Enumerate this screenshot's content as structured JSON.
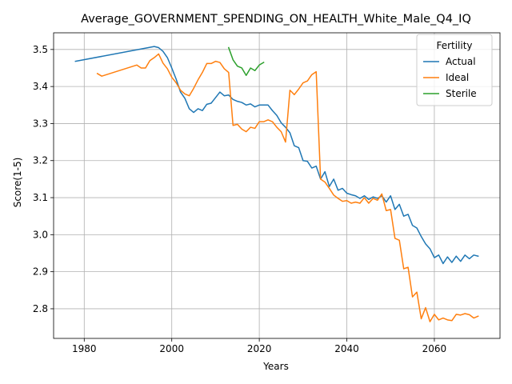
{
  "chart_data": {
    "type": "line",
    "title": "Average_GOVERNMENT_SPENDING_ON_HEALTH_White_Male_Q4_IQ",
    "xlabel": "Years",
    "ylabel": "Score(1-5)",
    "xlim": [
      1973,
      2075
    ],
    "ylim": [
      2.72,
      3.545
    ],
    "xticks": [
      1980,
      2000,
      2020,
      2040,
      2060
    ],
    "yticks": [
      2.8,
      2.9,
      3.0,
      3.1,
      3.2,
      3.3,
      3.4,
      3.5
    ],
    "grid": true,
    "legend": {
      "title": "Fertility",
      "position": "top-right"
    },
    "series": [
      {
        "name": "Actual",
        "color": "#1f77b4",
        "x": [
          1978,
          1996,
          1997,
          1998,
          1999,
          2000,
          2001,
          2002,
          2003,
          2004,
          2005,
          2006,
          2007,
          2008,
          2009,
          2010,
          2011,
          2012,
          2013,
          2014,
          2015,
          2016,
          2017,
          2018,
          2019,
          2020,
          2021,
          2022,
          2023,
          2024,
          2025,
          2026,
          2027,
          2028,
          2029,
          2030,
          2031,
          2032,
          2033,
          2034,
          2035,
          2036,
          2037,
          2038,
          2039,
          2040,
          2041,
          2042,
          2043,
          2044,
          2045,
          2046,
          2047,
          2048,
          2049,
          2050,
          2051,
          2052,
          2053,
          2054,
          2055,
          2056,
          2057,
          2058,
          2059,
          2060,
          2061,
          2062,
          2063,
          2064,
          2065,
          2066,
          2067,
          2068,
          2069,
          2070
        ],
        "y": [
          3.468,
          3.508,
          3.505,
          3.495,
          3.478,
          3.45,
          3.42,
          3.385,
          3.368,
          3.34,
          3.33,
          3.34,
          3.335,
          3.352,
          3.355,
          3.37,
          3.385,
          3.375,
          3.377,
          3.365,
          3.36,
          3.357,
          3.35,
          3.353,
          3.345,
          3.35,
          3.35,
          3.35,
          3.335,
          3.322,
          3.302,
          3.29,
          3.275,
          3.24,
          3.235,
          3.2,
          3.198,
          3.18,
          3.185,
          3.15,
          3.17,
          3.13,
          3.15,
          3.12,
          3.125,
          3.112,
          3.108,
          3.105,
          3.098,
          3.105,
          3.095,
          3.102,
          3.098,
          3.105,
          3.088,
          3.105,
          3.068,
          3.082,
          3.05,
          3.055,
          3.025,
          3.018,
          2.995,
          2.975,
          2.962,
          2.938,
          2.945,
          2.922,
          2.94,
          2.925,
          2.942,
          2.928,
          2.945,
          2.935,
          2.945,
          2.942
        ]
      },
      {
        "name": "Ideal",
        "color": "#ff7f0e",
        "x": [
          1983,
          1984,
          1992,
          1993,
          1994,
          1995,
          1996,
          1997,
          1998,
          1999,
          2000,
          2001,
          2002,
          2003,
          2004,
          2005,
          2006,
          2007,
          2008,
          2009,
          2010,
          2011,
          2012,
          2013,
          2014,
          2015,
          2016,
          2017,
          2018,
          2019,
          2020,
          2021,
          2022,
          2023,
          2024,
          2025,
          2026,
          2027,
          2028,
          2029,
          2030,
          2031,
          2032,
          2033,
          2034,
          2035,
          2036,
          2037,
          2038,
          2039,
          2040,
          2041,
          2042,
          2043,
          2044,
          2045,
          2046,
          2047,
          2048,
          2049,
          2050,
          2051,
          2052,
          2053,
          2054,
          2055,
          2056,
          2057,
          2058,
          2059,
          2060,
          2061,
          2062,
          2063,
          2064,
          2065,
          2066,
          2067,
          2068,
          2069,
          2070
        ],
        "y": [
          3.435,
          3.428,
          3.458,
          3.45,
          3.45,
          3.47,
          3.478,
          3.488,
          3.463,
          3.448,
          3.425,
          3.41,
          3.39,
          3.38,
          3.375,
          3.395,
          3.418,
          3.438,
          3.462,
          3.462,
          3.468,
          3.465,
          3.448,
          3.438,
          3.295,
          3.298,
          3.285,
          3.278,
          3.29,
          3.287,
          3.305,
          3.305,
          3.31,
          3.305,
          3.29,
          3.278,
          3.25,
          3.39,
          3.378,
          3.393,
          3.41,
          3.415,
          3.432,
          3.44,
          3.15,
          3.142,
          3.125,
          3.107,
          3.098,
          3.09,
          3.092,
          3.085,
          3.088,
          3.085,
          3.1,
          3.085,
          3.098,
          3.093,
          3.11,
          3.065,
          3.068,
          2.99,
          2.985,
          2.908,
          2.912,
          2.832,
          2.845,
          2.773,
          2.803,
          2.765,
          2.785,
          2.77,
          2.775,
          2.77,
          2.768,
          2.785,
          2.783,
          2.787,
          2.784,
          2.775,
          2.78
        ]
      },
      {
        "name": "Sterile",
        "color": "#2ca02c",
        "x": [
          2013,
          2014,
          2015,
          2016,
          2017,
          2018,
          2019,
          2020,
          2021
        ],
        "y": [
          3.505,
          3.472,
          3.455,
          3.45,
          3.43,
          3.45,
          3.443,
          3.458,
          3.465
        ]
      }
    ]
  }
}
